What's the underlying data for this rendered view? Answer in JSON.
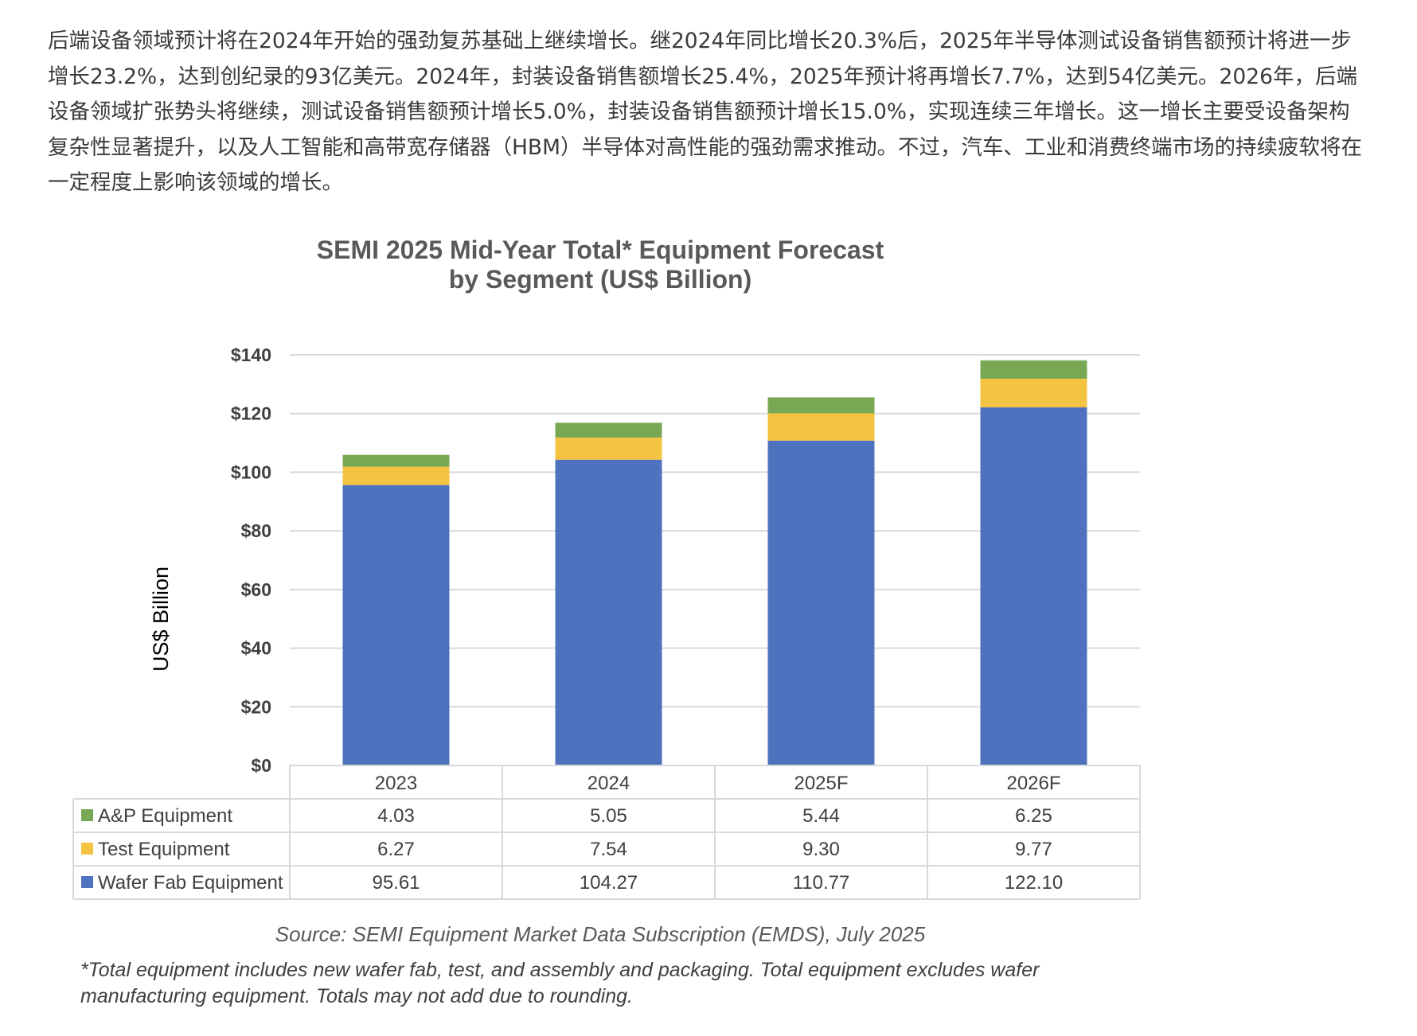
{
  "article": {
    "paragraph": "后端设备领域预计将在2024年开始的强劲复苏基础上继续增长。继2024年同比增长20.3%后，2025年半导体测试设备销售额预计将进一步增长23.2%，达到创纪录的93亿美元。2024年，封装设备销售额增长25.4%，2025年预计将再增长7.7%，达到54亿美元。2026年，后端设备领域扩张势头将继续，测试设备销售额预计增长5.0%，封装设备销售额预计增长15.0%，实现连续三年增长。这一增长主要受设备架构复杂性显著提升，以及人工智能和高带宽存储器（HBM）半导体对高性能的强劲需求推动。不过，汽车、工业和消费终端市场的持续疲软将在一定程度上影响该领域的增长。"
  },
  "chart_data": {
    "type": "bar",
    "stacked": true,
    "title": [
      "SEMI 2025 Mid-Year Total* Equipment Forecast",
      "by Segment (US$ Billion)"
    ],
    "ylabel": "US$ Billion",
    "xlabel": "",
    "ylim": [
      0,
      140
    ],
    "yticks": [
      "$0",
      "$20",
      "$40",
      "$60",
      "$80",
      "$100",
      "$120",
      "$140"
    ],
    "ytick_values": [
      0,
      20,
      40,
      60,
      80,
      100,
      120,
      140
    ],
    "grid": true,
    "legend": "data-table",
    "categories": [
      "2023",
      "2024",
      "2025F",
      "2026F"
    ],
    "series": [
      {
        "name": "Wafer Fab Equipment",
        "color": "#4f72be",
        "values": [
          95.61,
          104.27,
          110.77,
          122.1
        ],
        "labels": [
          "95.61",
          "104.27",
          "110.77",
          "122.10"
        ]
      },
      {
        "name": "Test Equipment",
        "color": "#f5c342",
        "values": [
          6.27,
          7.54,
          9.3,
          9.77
        ],
        "labels": [
          "6.27",
          "7.54",
          "9.30",
          "9.77"
        ]
      },
      {
        "name": "A&P Equipment",
        "color": "#78a854",
        "values": [
          4.03,
          5.05,
          5.44,
          6.25
        ],
        "labels": [
          "4.03",
          "5.05",
          "5.44",
          "6.25"
        ]
      }
    ],
    "table_row_order": [
      "A&P Equipment",
      "Test Equipment",
      "Wafer Fab Equipment"
    ],
    "source": "Source: SEMI Equipment Market Data Subscription (EMDS), July 2025",
    "footnote": [
      "*Total equipment includes new wafer fab, test, and assembly and packaging. Total equipment excludes wafer",
      "manufacturing equipment. Totals may not add due to rounding."
    ]
  }
}
